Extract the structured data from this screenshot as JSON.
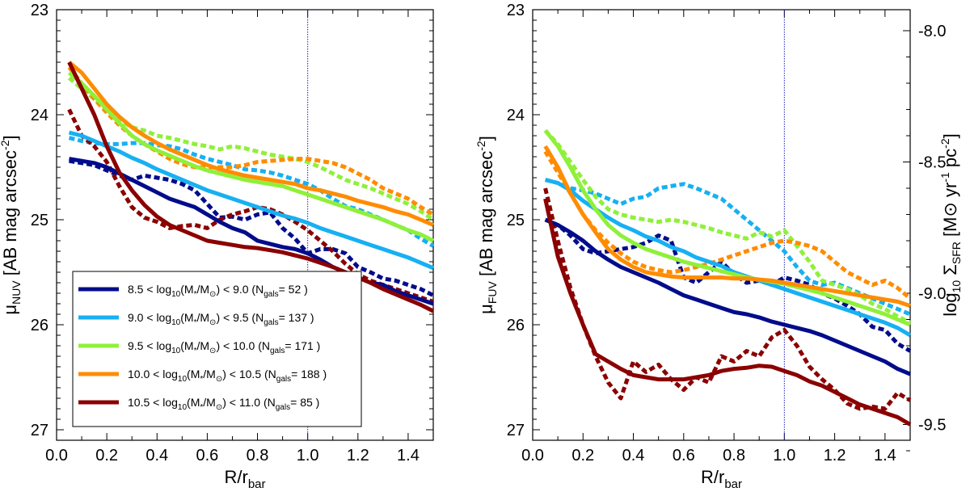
{
  "chart_data": [
    {
      "type": "line",
      "panel": "left",
      "xlabel": "R/r",
      "xlabel_sub": "bar",
      "ylabel": "μ",
      "ylabel_sub": "NUV",
      "ylabel_rest": " [AB mag arcsec",
      "ylabel_sup": "-2",
      "ylabel_close": "]",
      "xlim": [
        0.0,
        1.5
      ],
      "ylim": [
        27.1,
        23.0
      ],
      "xticks": [
        "0.0",
        "0.2",
        "0.4",
        "0.6",
        "0.8",
        "1.0",
        "1.2",
        "1.4"
      ],
      "yticks": [
        "23",
        "24",
        "25",
        "26",
        "27"
      ],
      "vline": 1.0,
      "x": [
        0.05,
        0.1,
        0.15,
        0.2,
        0.25,
        0.3,
        0.35,
        0.4,
        0.45,
        0.5,
        0.55,
        0.6,
        0.65,
        0.7,
        0.75,
        0.8,
        0.85,
        0.9,
        0.95,
        1.0,
        1.05,
        1.1,
        1.15,
        1.2,
        1.25,
        1.3,
        1.35,
        1.4,
        1.45,
        1.5
      ],
      "series": [
        {
          "name": "8.5-9.0",
          "color": "#000c8b",
          "style": "solid",
          "values": [
            24.42,
            24.44,
            24.46,
            24.5,
            24.56,
            24.62,
            24.68,
            24.74,
            24.8,
            24.84,
            24.88,
            24.95,
            25.02,
            25.08,
            25.12,
            25.2,
            25.23,
            25.26,
            25.28,
            25.32,
            25.38,
            25.45,
            25.5,
            25.55,
            25.6,
            25.62,
            25.68,
            25.72,
            25.76,
            25.8
          ]
        },
        {
          "name": "8.5-9.0",
          "color": "#000c8b",
          "style": "dotted",
          "values": [
            24.44,
            24.46,
            24.48,
            24.53,
            24.58,
            24.62,
            24.58,
            24.6,
            24.62,
            24.66,
            24.72,
            24.85,
            24.98,
            24.97,
            25.0,
            24.95,
            24.93,
            25.08,
            25.18,
            25.32,
            25.28,
            25.28,
            25.32,
            25.45,
            25.5,
            25.56,
            25.58,
            25.62,
            25.66,
            25.72
          ]
        },
        {
          "name": "9.0-9.5",
          "color": "#17b0f2",
          "style": "solid",
          "values": [
            24.17,
            24.2,
            24.25,
            24.3,
            24.35,
            24.41,
            24.46,
            24.52,
            24.57,
            24.62,
            24.67,
            24.72,
            24.76,
            24.8,
            24.84,
            24.88,
            24.92,
            24.96,
            24.99,
            25.03,
            25.08,
            25.12,
            25.16,
            25.2,
            25.24,
            25.28,
            25.32,
            25.36,
            25.41,
            25.46
          ]
        },
        {
          "name": "9.0-9.5",
          "color": "#17b0f2",
          "style": "dotted",
          "values": [
            24.22,
            24.25,
            24.27,
            24.28,
            24.28,
            24.27,
            24.27,
            24.29,
            24.3,
            24.33,
            24.38,
            24.42,
            24.45,
            24.48,
            24.52,
            24.53,
            24.55,
            24.58,
            24.62,
            24.66,
            24.72,
            24.8,
            24.87,
            24.9,
            24.95,
            25.0,
            25.05,
            25.1,
            25.18,
            25.25
          ]
        },
        {
          "name": "9.5-10.0",
          "color": "#8ff03a",
          "style": "solid",
          "values": [
            23.6,
            23.7,
            23.82,
            23.95,
            24.08,
            24.2,
            24.28,
            24.34,
            24.39,
            24.44,
            24.49,
            24.53,
            24.56,
            24.59,
            24.62,
            24.64,
            24.66,
            24.68,
            24.72,
            24.76,
            24.8,
            24.84,
            24.88,
            24.92,
            24.96,
            25.0,
            25.05,
            25.1,
            25.14,
            25.2
          ]
        },
        {
          "name": "9.5-10.0",
          "color": "#8ff03a",
          "style": "dotted",
          "values": [
            23.65,
            23.75,
            23.85,
            23.95,
            24.05,
            24.12,
            24.15,
            24.2,
            24.22,
            24.25,
            24.28,
            24.3,
            24.33,
            24.3,
            24.32,
            24.35,
            24.38,
            24.4,
            24.42,
            24.45,
            24.5,
            24.56,
            24.62,
            24.66,
            24.7,
            24.75,
            24.8,
            24.85,
            24.92,
            25.0
          ]
        },
        {
          "name": "10.0-10.5",
          "color": "#ff8c00",
          "style": "solid",
          "values": [
            23.5,
            23.6,
            23.75,
            23.9,
            24.02,
            24.12,
            24.2,
            24.27,
            24.33,
            24.38,
            24.43,
            24.48,
            24.52,
            24.55,
            24.58,
            24.6,
            24.62,
            24.64,
            24.66,
            24.7,
            24.72,
            24.75,
            24.78,
            24.82,
            24.85,
            24.88,
            24.92,
            24.95,
            25.0,
            25.05
          ]
        },
        {
          "name": "10.0-10.5",
          "color": "#ff8c00",
          "style": "dotted",
          "values": [
            23.55,
            23.7,
            23.85,
            23.98,
            24.1,
            24.2,
            24.28,
            24.35,
            24.42,
            24.47,
            24.5,
            24.5,
            24.5,
            24.5,
            24.48,
            24.45,
            24.44,
            24.43,
            24.42,
            24.42,
            24.44,
            24.46,
            24.5,
            24.56,
            24.62,
            24.7,
            24.75,
            24.8,
            24.88,
            24.95
          ]
        },
        {
          "name": "10.5-11.0",
          "color": "#8b0000",
          "style": "solid",
          "values": [
            23.5,
            23.75,
            24.0,
            24.3,
            24.55,
            24.72,
            24.86,
            24.97,
            25.05,
            25.1,
            25.15,
            25.2,
            25.22,
            25.24,
            25.26,
            25.27,
            25.29,
            25.31,
            25.34,
            25.37,
            25.41,
            25.45,
            25.5,
            25.55,
            25.6,
            25.66,
            25.71,
            25.76,
            25.81,
            25.87
          ]
        },
        {
          "name": "10.5-11.0",
          "color": "#8b0000",
          "style": "dotted",
          "values": [
            23.95,
            24.2,
            24.3,
            24.45,
            24.68,
            24.88,
            24.98,
            25.02,
            25.08,
            25.06,
            25.05,
            25.08,
            25.0,
            24.95,
            24.92,
            24.88,
            24.9,
            24.95,
            25.02,
            25.1,
            25.2,
            25.3,
            25.42,
            25.52,
            25.58,
            25.62,
            25.66,
            25.7,
            25.74,
            25.78
          ]
        }
      ]
    },
    {
      "type": "line",
      "panel": "right",
      "xlabel": "R/r",
      "xlabel_sub": "bar",
      "ylabel": "μ",
      "ylabel_sub": "FUV",
      "ylabel_rest": " [AB mag arcsec",
      "ylabel_sup": "-2",
      "ylabel_close": "]",
      "y2label_pre": "log",
      "y2label_sub1": "10",
      "y2label_sigma": " Σ",
      "y2label_sub2": "SFR",
      "y2label_rest": " [M",
      "y2label_sun": "⊙",
      "y2label_yr": " yr",
      "y2label_sup1": "-1",
      "y2label_pc": " pc",
      "y2label_sup2": "-2",
      "y2label_close": "]",
      "xlim": [
        0.0,
        1.5
      ],
      "ylim": [
        27.1,
        23.0
      ],
      "y2lim": [
        -9.56,
        -7.92
      ],
      "xticks": [
        "0.0",
        "0.2",
        "0.4",
        "0.6",
        "0.8",
        "1.0",
        "1.2",
        "1.4"
      ],
      "yticks": [
        "23",
        "24",
        "25",
        "26",
        "27"
      ],
      "y2ticks": [
        "-8.0",
        "-8.5",
        "-9.0",
        "-9.5"
      ],
      "vline": 1.0,
      "x": [
        0.05,
        0.1,
        0.15,
        0.2,
        0.25,
        0.3,
        0.35,
        0.4,
        0.45,
        0.5,
        0.55,
        0.6,
        0.65,
        0.7,
        0.75,
        0.8,
        0.85,
        0.9,
        0.95,
        1.0,
        1.05,
        1.1,
        1.15,
        1.2,
        1.25,
        1.3,
        1.35,
        1.4,
        1.45,
        1.5
      ],
      "series": [
        {
          "name": "8.5-9.0",
          "color": "#000c8b",
          "style": "solid",
          "values": [
            25.0,
            25.05,
            25.12,
            25.2,
            25.3,
            25.38,
            25.45,
            25.5,
            25.55,
            25.6,
            25.66,
            25.72,
            25.76,
            25.8,
            25.84,
            25.88,
            25.9,
            25.93,
            25.97,
            26.0,
            26.03,
            26.06,
            26.1,
            26.15,
            26.2,
            26.25,
            26.3,
            26.35,
            26.42,
            26.47
          ]
        },
        {
          "name": "8.5-9.0",
          "color": "#000c8b",
          "style": "dotted",
          "values": [
            25.0,
            25.05,
            25.15,
            25.28,
            25.32,
            25.3,
            25.28,
            25.26,
            25.22,
            25.15,
            25.2,
            25.55,
            25.6,
            25.5,
            25.4,
            25.52,
            25.6,
            25.58,
            25.62,
            25.55,
            25.58,
            25.62,
            25.7,
            25.75,
            25.82,
            25.9,
            26.02,
            26.05,
            26.18,
            26.25
          ]
        },
        {
          "name": "9.0-9.5",
          "color": "#17b0f2",
          "style": "solid",
          "values": [
            24.62,
            24.65,
            24.72,
            24.82,
            24.9,
            24.98,
            25.05,
            25.1,
            25.16,
            25.2,
            25.26,
            25.3,
            25.36,
            25.4,
            25.44,
            25.5,
            25.54,
            25.58,
            25.62,
            25.66,
            25.7,
            25.74,
            25.78,
            25.82,
            25.86,
            25.9,
            25.94,
            25.98,
            26.03,
            26.1
          ]
        },
        {
          "name": "9.0-9.5",
          "color": "#17b0f2",
          "style": "dotted",
          "values": [
            24.62,
            24.65,
            24.7,
            24.72,
            24.75,
            24.8,
            24.85,
            24.8,
            24.78,
            24.7,
            24.68,
            24.66,
            24.7,
            24.75,
            24.8,
            24.9,
            25.0,
            25.1,
            25.2,
            25.3,
            25.45,
            25.58,
            25.62,
            25.6,
            25.65,
            25.7,
            25.75,
            25.8,
            25.85,
            25.9
          ]
        },
        {
          "name": "9.5-10.0",
          "color": "#8ff03a",
          "style": "solid",
          "values": [
            24.15,
            24.3,
            24.5,
            24.72,
            24.9,
            25.05,
            25.15,
            25.22,
            25.28,
            25.32,
            25.36,
            25.4,
            25.43,
            25.46,
            25.49,
            25.52,
            25.55,
            25.57,
            25.59,
            25.61,
            25.64,
            25.67,
            25.7,
            25.74,
            25.78,
            25.82,
            25.86,
            25.9,
            25.95,
            26.0
          ]
        },
        {
          "name": "9.5-10.0",
          "color": "#8ff03a",
          "style": "dotted",
          "values": [
            24.15,
            24.28,
            24.45,
            24.62,
            24.78,
            24.9,
            24.95,
            24.98,
            25.0,
            25.02,
            25.0,
            25.02,
            25.05,
            25.08,
            25.12,
            25.15,
            25.18,
            25.12,
            25.16,
            25.1,
            25.25,
            25.4,
            25.58,
            25.62,
            25.66,
            25.72,
            25.8,
            25.85,
            25.92,
            25.98
          ]
        },
        {
          "name": "10.0-10.5",
          "color": "#ff8c00",
          "style": "solid",
          "values": [
            24.3,
            24.5,
            24.75,
            24.95,
            25.12,
            25.28,
            25.38,
            25.45,
            25.5,
            25.52,
            25.54,
            25.55,
            25.55,
            25.55,
            25.55,
            25.56,
            25.56,
            25.57,
            25.58,
            25.6,
            25.62,
            25.64,
            25.66,
            25.68,
            25.7,
            25.72,
            25.74,
            25.76,
            25.78,
            25.82
          ]
        },
        {
          "name": "10.0-10.5",
          "color": "#ff8c00",
          "style": "dotted",
          "values": [
            24.35,
            24.55,
            24.75,
            24.95,
            25.1,
            25.22,
            25.32,
            25.4,
            25.45,
            25.48,
            25.5,
            25.48,
            25.45,
            25.42,
            25.38,
            25.34,
            25.3,
            25.26,
            25.22,
            25.2,
            25.22,
            25.25,
            25.3,
            25.4,
            25.5,
            25.56,
            25.62,
            25.58,
            25.65,
            25.75
          ]
        },
        {
          "name": "10.5-11.0",
          "color": "#8b0000",
          "style": "solid",
          "values": [
            24.8,
            25.35,
            25.7,
            26.0,
            26.28,
            26.35,
            26.42,
            26.48,
            26.5,
            26.52,
            26.52,
            26.52,
            26.5,
            26.48,
            26.44,
            26.42,
            26.41,
            26.39,
            26.4,
            26.44,
            26.48,
            26.54,
            26.58,
            26.64,
            26.7,
            26.76,
            26.8,
            26.84,
            26.88,
            26.95
          ]
        },
        {
          "name": "10.5-11.0",
          "color": "#8b0000",
          "style": "dotted",
          "values": [
            24.7,
            25.2,
            25.65,
            26.0,
            26.3,
            26.55,
            26.7,
            26.35,
            26.45,
            26.38,
            26.52,
            26.62,
            26.5,
            26.55,
            26.3,
            26.35,
            26.25,
            26.3,
            26.12,
            26.05,
            26.2,
            26.4,
            26.52,
            26.62,
            26.75,
            26.8,
            26.78,
            26.8,
            26.65,
            26.72
          ]
        }
      ]
    }
  ],
  "legend": [
    {
      "color": "#000c8b",
      "lo": "8.5",
      "hi": "9.0",
      "n": "52"
    },
    {
      "color": "#17b0f2",
      "lo": "9.0",
      "hi": "9.5",
      "n": "137"
    },
    {
      "color": "#8ff03a",
      "lo": "9.5",
      "hi": "10.0",
      "n": "171"
    },
    {
      "color": "#ff8c00",
      "lo": "10.0",
      "hi": "10.5",
      "n": "188"
    },
    {
      "color": "#8b0000",
      "lo": "10.5",
      "hi": "11.0",
      "n": "85"
    }
  ],
  "legend_text": {
    "lt": " < ",
    "log": "log",
    "log_sub": "10",
    "mass_open": "(M",
    "mass_star": "*",
    "mass_slash": "/M",
    "mass_sun": "⊙",
    "mass_close": ")",
    "ngals_open": "(N",
    "ngals_sub": "gals",
    "ngals_eq": "= ",
    "ngals_close": " )"
  }
}
